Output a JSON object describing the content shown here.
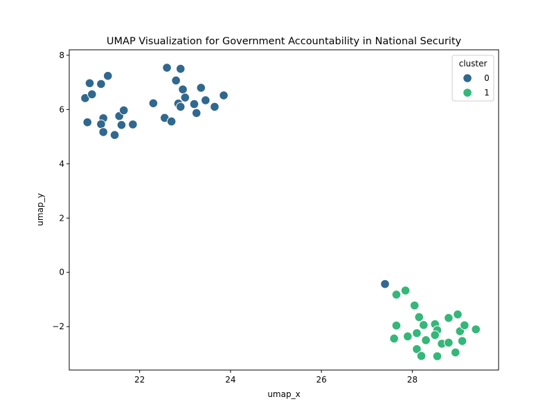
{
  "chart_data": {
    "type": "scatter",
    "title": "UMAP Visualization for Government Accountability in National Security",
    "xlabel": "umap_x",
    "ylabel": "umap_y",
    "xlim": [
      20.45,
      29.9
    ],
    "ylim": [
      -3.6,
      8.2
    ],
    "xticks": [
      22,
      24,
      26,
      28
    ],
    "yticks": [
      -2,
      0,
      2,
      4,
      6,
      8
    ],
    "grid": false,
    "legend": {
      "title": "cluster",
      "placement": "top-right"
    },
    "series": [
      {
        "name": "0",
        "color": "#31688e",
        "points": [
          [
            20.9,
            6.97
          ],
          [
            21.3,
            7.24
          ],
          [
            21.15,
            6.94
          ],
          [
            20.8,
            6.42
          ],
          [
            20.95,
            6.56
          ],
          [
            20.85,
            5.53
          ],
          [
            21.2,
            5.68
          ],
          [
            21.15,
            5.46
          ],
          [
            21.2,
            5.17
          ],
          [
            21.45,
            5.06
          ],
          [
            21.55,
            5.76
          ],
          [
            21.65,
            5.97
          ],
          [
            21.6,
            5.43
          ],
          [
            21.85,
            5.45
          ],
          [
            22.3,
            6.23
          ],
          [
            22.6,
            7.54
          ],
          [
            22.9,
            7.5
          ],
          [
            22.8,
            7.07
          ],
          [
            22.95,
            6.74
          ],
          [
            22.85,
            6.22
          ],
          [
            22.9,
            6.1
          ],
          [
            23.0,
            6.44
          ],
          [
            23.35,
            6.8
          ],
          [
            23.2,
            6.2
          ],
          [
            23.45,
            6.34
          ],
          [
            23.25,
            5.87
          ],
          [
            23.65,
            6.1
          ],
          [
            23.85,
            6.52
          ],
          [
            22.55,
            5.69
          ],
          [
            22.7,
            5.56
          ],
          [
            27.4,
            -0.43
          ]
        ]
      },
      {
        "name": "1",
        "color": "#35b779",
        "points": [
          [
            27.65,
            -0.82
          ],
          [
            27.85,
            -0.67
          ],
          [
            28.05,
            -1.22
          ],
          [
            28.15,
            -1.65
          ],
          [
            27.65,
            -1.96
          ],
          [
            27.6,
            -2.44
          ],
          [
            27.9,
            -2.36
          ],
          [
            28.1,
            -2.24
          ],
          [
            28.25,
            -1.94
          ],
          [
            28.5,
            -1.91
          ],
          [
            28.55,
            -2.13
          ],
          [
            28.3,
            -2.5
          ],
          [
            28.5,
            -2.31
          ],
          [
            28.1,
            -2.83
          ],
          [
            28.2,
            -3.08
          ],
          [
            28.55,
            -3.09
          ],
          [
            28.65,
            -2.63
          ],
          [
            28.8,
            -2.59
          ],
          [
            28.8,
            -1.68
          ],
          [
            29.0,
            -1.55
          ],
          [
            28.95,
            -2.95
          ],
          [
            29.05,
            -2.17
          ],
          [
            29.15,
            -1.95
          ],
          [
            29.1,
            -2.53
          ],
          [
            29.4,
            -2.1
          ]
        ]
      }
    ]
  }
}
